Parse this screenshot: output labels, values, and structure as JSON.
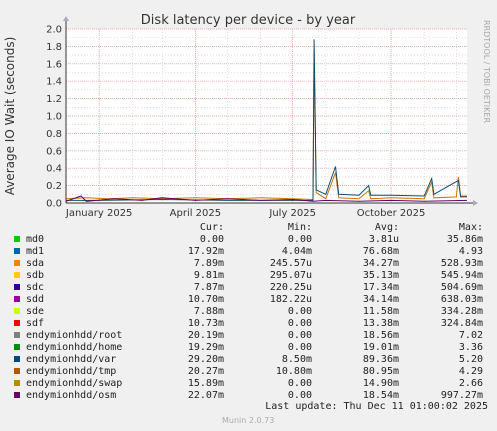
{
  "chart_data": {
    "type": "line",
    "title": "Disk latency per device - by year",
    "ylabel": "Average IO Wait (seconds)",
    "xlabel": "",
    "ylim": [
      0,
      2.0
    ],
    "y_ticks": [
      "0.0",
      "0.2",
      "0.4",
      "0.6",
      "0.8",
      "1.0",
      "1.2",
      "1.4",
      "1.6",
      "1.8",
      "2.0"
    ],
    "x_range": [
      "2024-12-01",
      "2025-12-11"
    ],
    "x_ticks": [
      {
        "date": "2025-01-01",
        "label": "January 2025"
      },
      {
        "date": "2025-04-01",
        "label": "April 2025"
      },
      {
        "date": "2025-07-01",
        "label": "July 2025"
      },
      {
        "date": "2025-10-01",
        "label": "October 2025"
      }
    ],
    "grid": true,
    "legend_placement": "bottom",
    "side_label": "RRDTOOL / TOBI OETIKER",
    "series_approx": [
      {
        "name": "endymionhdd/tmp",
        "color": "#cc7700",
        "points": [
          [
            "2024-12-01",
            0.05
          ],
          [
            "2024-12-20",
            0.06
          ],
          [
            "2025-01-10",
            0.05
          ],
          [
            "2025-02-01",
            0.06
          ],
          [
            "2025-03-01",
            0.05
          ],
          [
            "2025-04-01",
            0.06
          ],
          [
            "2025-05-01",
            0.05
          ],
          [
            "2025-06-01",
            0.06
          ],
          [
            "2025-07-01",
            0.05
          ],
          [
            "2025-07-20",
            0.04
          ],
          [
            "2025-07-21",
            1.75
          ],
          [
            "2025-07-23",
            0.12
          ],
          [
            "2025-08-01",
            0.05
          ],
          [
            "2025-08-10",
            0.35
          ],
          [
            "2025-08-13",
            0.06
          ],
          [
            "2025-09-01",
            0.05
          ],
          [
            "2025-09-10",
            0.14
          ],
          [
            "2025-09-12",
            0.05
          ],
          [
            "2025-10-01",
            0.06
          ],
          [
            "2025-11-01",
            0.05
          ],
          [
            "2025-11-08",
            0.24
          ],
          [
            "2025-11-10",
            0.06
          ],
          [
            "2025-12-01",
            0.07
          ],
          [
            "2025-12-03",
            0.3
          ],
          [
            "2025-12-05",
            0.08
          ],
          [
            "2025-12-11",
            0.08
          ]
        ]
      },
      {
        "name": "endymionhdd/var",
        "color": "#0d4f6e",
        "points": [
          [
            "2024-12-01",
            0.03
          ],
          [
            "2025-01-01",
            0.03
          ],
          [
            "2025-03-01",
            0.04
          ],
          [
            "2025-05-01",
            0.03
          ],
          [
            "2025-07-01",
            0.03
          ],
          [
            "2025-07-20",
            0.03
          ],
          [
            "2025-07-21",
            1.88
          ],
          [
            "2025-07-23",
            0.15
          ],
          [
            "2025-08-01",
            0.1
          ],
          [
            "2025-08-10",
            0.42
          ],
          [
            "2025-08-13",
            0.1
          ],
          [
            "2025-09-01",
            0.09
          ],
          [
            "2025-09-10",
            0.2
          ],
          [
            "2025-09-12",
            0.09
          ],
          [
            "2025-10-01",
            0.09
          ],
          [
            "2025-11-01",
            0.08
          ],
          [
            "2025-11-08",
            0.28
          ],
          [
            "2025-11-10",
            0.1
          ],
          [
            "2025-12-03",
            0.26
          ],
          [
            "2025-12-05",
            0.07
          ],
          [
            "2025-12-11",
            0.07
          ]
        ]
      },
      {
        "name": "endymionhdd/osm",
        "color": "#660066",
        "points": [
          [
            "2024-12-01",
            0.02
          ],
          [
            "2024-12-15",
            0.08
          ],
          [
            "2024-12-20",
            0.02
          ],
          [
            "2025-01-15",
            0.05
          ],
          [
            "2025-02-10",
            0.03
          ],
          [
            "2025-03-01",
            0.06
          ],
          [
            "2025-04-01",
            0.03
          ],
          [
            "2025-05-01",
            0.05
          ],
          [
            "2025-06-01",
            0.03
          ],
          [
            "2025-07-01",
            0.04
          ],
          [
            "2025-07-20",
            0.02
          ],
          [
            "2025-08-01",
            0.03
          ],
          [
            "2025-09-01",
            0.02
          ],
          [
            "2025-10-01",
            0.03
          ],
          [
            "2025-11-01",
            0.02
          ],
          [
            "2025-12-11",
            0.03
          ]
        ]
      }
    ]
  },
  "legend": {
    "headers": {
      "cur": "Cur:",
      "min": "Min:",
      "avg": "Avg:",
      "max": "Max:"
    },
    "rows": [
      {
        "name": "md0",
        "color": "#00cc00",
        "cur": "0.00",
        "min": "0.00",
        "avg": "3.81u",
        "max": "35.86m"
      },
      {
        "name": "md1",
        "color": "#0066b3",
        "cur": "17.92m",
        "min": "4.04m",
        "avg": "76.68m",
        "max": "4.93"
      },
      {
        "name": "sda",
        "color": "#ff8000",
        "cur": "7.89m",
        "min": "245.57u",
        "avg": "34.27m",
        "max": "528.93m"
      },
      {
        "name": "sdb",
        "color": "#ffcc00",
        "cur": "9.81m",
        "min": "295.07u",
        "avg": "35.13m",
        "max": "545.94m"
      },
      {
        "name": "sdc",
        "color": "#330099",
        "cur": "7.87m",
        "min": "220.25u",
        "avg": "17.34m",
        "max": "504.69m"
      },
      {
        "name": "sdd",
        "color": "#990099",
        "cur": "10.70m",
        "min": "182.22u",
        "avg": "34.14m",
        "max": "638.03m"
      },
      {
        "name": "sde",
        "color": "#ccff00",
        "cur": "7.88m",
        "min": "0.00",
        "avg": "11.58m",
        "max": "334.28m"
      },
      {
        "name": "sdf",
        "color": "#ff0000",
        "cur": "10.73m",
        "min": "0.00",
        "avg": "13.38m",
        "max": "324.84m"
      },
      {
        "name": "endymionhdd/root",
        "color": "#808080",
        "cur": "20.19m",
        "min": "0.00",
        "avg": "18.56m",
        "max": "7.02"
      },
      {
        "name": "endymionhdd/home",
        "color": "#008f00",
        "cur": "19.29m",
        "min": "0.00",
        "avg": "19.01m",
        "max": "3.36"
      },
      {
        "name": "endymionhdd/var",
        "color": "#00487d",
        "cur": "29.20m",
        "min": "8.50m",
        "avg": "89.36m",
        "max": "5.20"
      },
      {
        "name": "endymionhdd/tmp",
        "color": "#b35a00",
        "cur": "20.27m",
        "min": "10.80m",
        "avg": "80.95m",
        "max": "4.29"
      },
      {
        "name": "endymionhdd/swap",
        "color": "#b38f00",
        "cur": "15.89m",
        "min": "0.00",
        "avg": "14.90m",
        "max": "2.66"
      },
      {
        "name": "endymionhdd/osm",
        "color": "#6b006b",
        "cur": "22.07m",
        "min": "0.00",
        "avg": "18.54m",
        "max": "997.27m"
      }
    ]
  },
  "footer": {
    "last_update": "Last update: Thu Dec 11 01:00:02 2025",
    "munin_version": "Munin 2.0.73"
  }
}
